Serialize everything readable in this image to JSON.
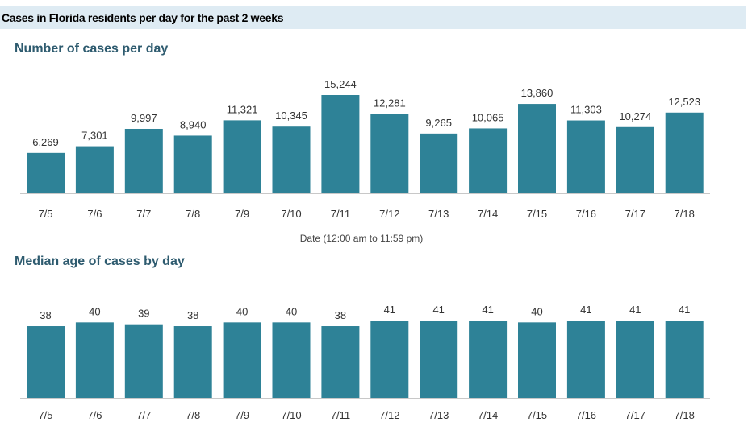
{
  "header": {
    "title": "Cases in Florida residents per day for the past 2 weeks"
  },
  "colors": {
    "bar": "#2e8297",
    "axis": "#c8c8c8",
    "header_bg": "#deebf3",
    "section_title": "#2e5b6f"
  },
  "chart_data": [
    {
      "type": "bar",
      "title": "Number of cases per day",
      "xlabel": "Date (12:00 am to 11:59 pm)",
      "ylabel": "",
      "categories": [
        "7/5",
        "7/6",
        "7/7",
        "7/8",
        "7/9",
        "7/10",
        "7/11",
        "7/12",
        "7/13",
        "7/14",
        "7/15",
        "7/16",
        "7/17",
        "7/18"
      ],
      "values": [
        6269,
        7301,
        9997,
        8940,
        11321,
        10345,
        15244,
        12281,
        9265,
        10065,
        13860,
        11303,
        10274,
        12523
      ],
      "value_labels": [
        "6,269",
        "7,301",
        "9,997",
        "8,940",
        "11,321",
        "10,345",
        "15,244",
        "12,281",
        "9,265",
        "10,065",
        "13,860",
        "11,303",
        "10,274",
        "12,523"
      ],
      "ylim": [
        0,
        15244
      ],
      "grid": false
    },
    {
      "type": "bar",
      "title": "Median age of cases by day",
      "xlabel": "",
      "ylabel": "",
      "categories": [
        "7/5",
        "7/6",
        "7/7",
        "7/8",
        "7/9",
        "7/10",
        "7/11",
        "7/12",
        "7/13",
        "7/14",
        "7/15",
        "7/16",
        "7/17",
        "7/18"
      ],
      "values": [
        38,
        40,
        39,
        38,
        40,
        40,
        38,
        41,
        41,
        41,
        40,
        41,
        41,
        41
      ],
      "value_labels": [
        "38",
        "40",
        "39",
        "38",
        "40",
        "40",
        "38",
        "41",
        "41",
        "41",
        "40",
        "41",
        "41",
        "41"
      ],
      "ylim": [
        0,
        41
      ],
      "grid": false
    }
  ]
}
